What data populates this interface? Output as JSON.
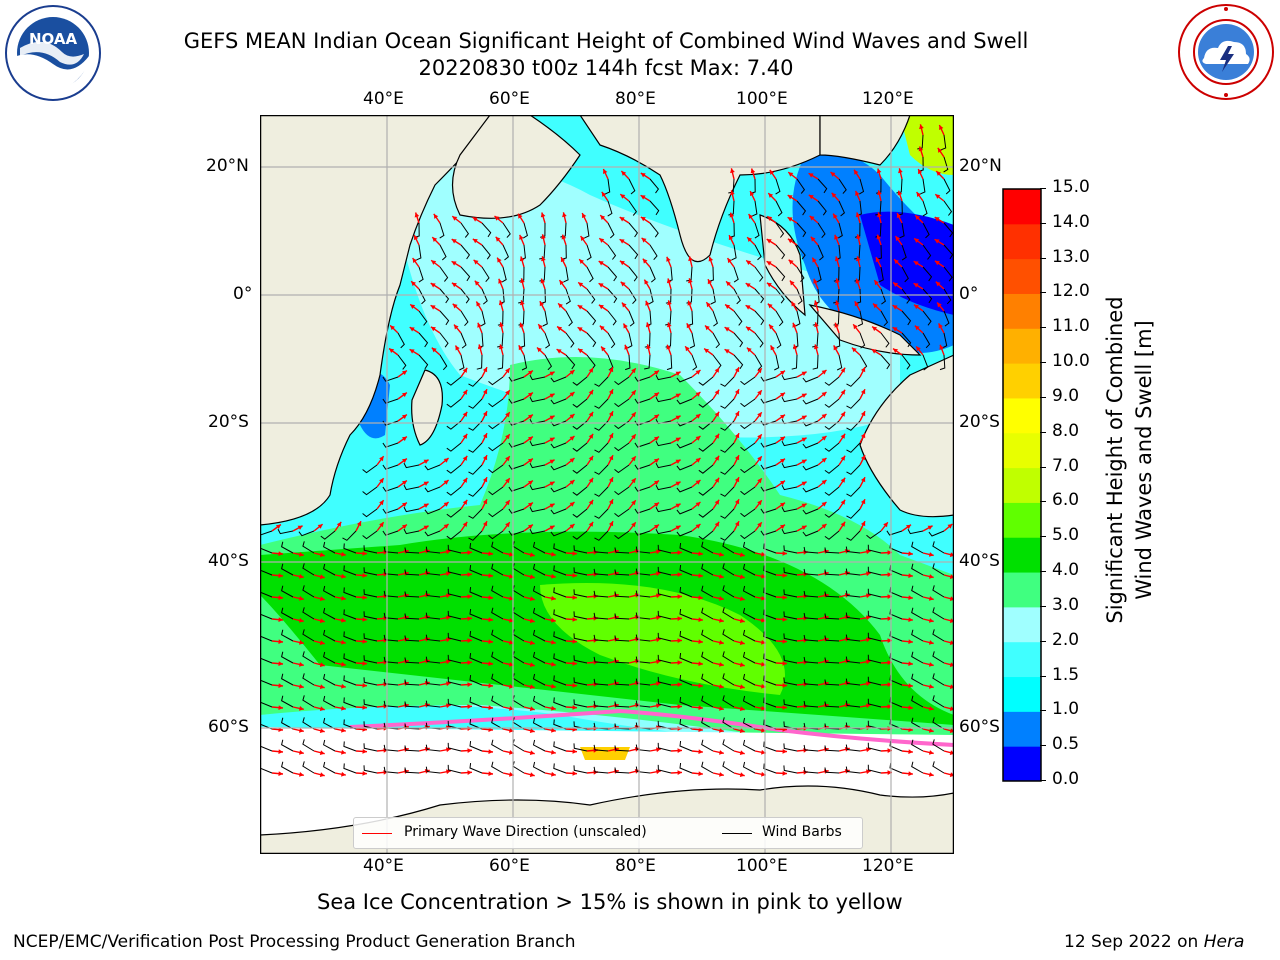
{
  "header": {
    "title_line1": "GEFS MEAN Indian Ocean Significant Height of Combined Wind Waves and Swell",
    "title_line2": "20220830 t00z 144h fcst   Max: 7.40"
  },
  "logos": {
    "left": "noaa-logo",
    "right": "nws-logo",
    "left_text": "NOAA"
  },
  "map": {
    "lon_ticks": [
      "40°E",
      "60°E",
      "80°E",
      "100°E",
      "120°E"
    ],
    "lat_ticks": [
      "20°N",
      "0°",
      "20°S",
      "40°S",
      "60°S"
    ],
    "lat_ticks_right": [
      "20°N",
      "0°",
      "20°S",
      "40°S",
      "60°S"
    ],
    "land_color": "#efeedf",
    "ice_color": "#ff66cc",
    "primary_wave_color": "#ff0000",
    "wind_barb_color": "#000000"
  },
  "legend": {
    "primary_wave": "Primary Wave Direction (unscaled)",
    "wind_barbs": "Wind Barbs"
  },
  "colorbar": {
    "label_line1": "Significant Height of Combined",
    "label_line2": "Wind Waves and Swell [m]",
    "ticks": [
      "0.0",
      "0.5",
      "1.0",
      "1.5",
      "2.0",
      "3.0",
      "4.0",
      "5.0",
      "6.0",
      "7.0",
      "8.0",
      "9.0",
      "10.0",
      "11.0",
      "12.0",
      "13.0",
      "14.0",
      "15.0"
    ],
    "colors": [
      "#0000ff",
      "#0080ff",
      "#00ffff",
      "#40ffff",
      "#a0ffff",
      "#40ff80",
      "#00e000",
      "#60ff00",
      "#c0ff00",
      "#e8ff00",
      "#ffff00",
      "#ffd000",
      "#ffb000",
      "#ff8000",
      "#ff5000",
      "#ff3000",
      "#ff0000"
    ]
  },
  "caption": "Sea Ice Concentration > 15% is shown in pink to yellow",
  "footer": {
    "left": "NCEP/EMC/Verification Post Processing Product Generation Branch",
    "right_prefix": "12 Sep 2022 on ",
    "right_italic": "Hera"
  }
}
